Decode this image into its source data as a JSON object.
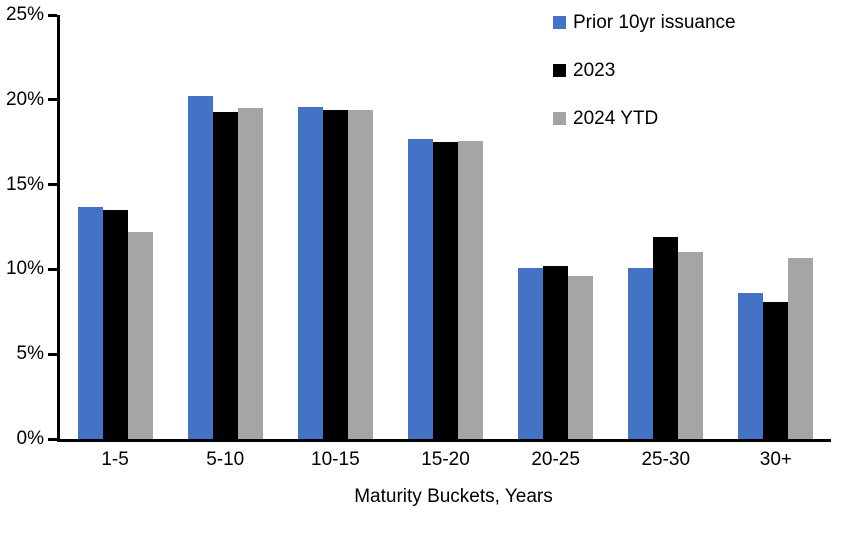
{
  "chart_data": {
    "type": "bar",
    "categories": [
      "1-5",
      "5-10",
      "10-15",
      "15-20",
      "20-25",
      "25-30",
      "30+"
    ],
    "series": [
      {
        "name": "Prior 10yr issuance",
        "color": "#4472C4",
        "values": [
          13.7,
          20.2,
          19.6,
          17.7,
          10.1,
          10.1,
          8.6
        ]
      },
      {
        "name": "2023",
        "color": "#000000",
        "values": [
          13.5,
          19.3,
          19.4,
          17.5,
          10.2,
          11.9,
          8.1
        ]
      },
      {
        "name": "2024 YTD",
        "color": "#A5A5A5",
        "values": [
          12.2,
          19.5,
          19.4,
          17.6,
          9.6,
          11.0,
          10.7
        ]
      }
    ],
    "title": "",
    "xlabel": "Maturity Buckets, Years",
    "ylabel": "",
    "ylim": [
      0,
      25
    ],
    "yticks": [
      "0%",
      "5%",
      "10%",
      "15%",
      "20%",
      "25%"
    ],
    "grid": false,
    "legend_position": "top-right",
    "axis_color": "#000000"
  }
}
